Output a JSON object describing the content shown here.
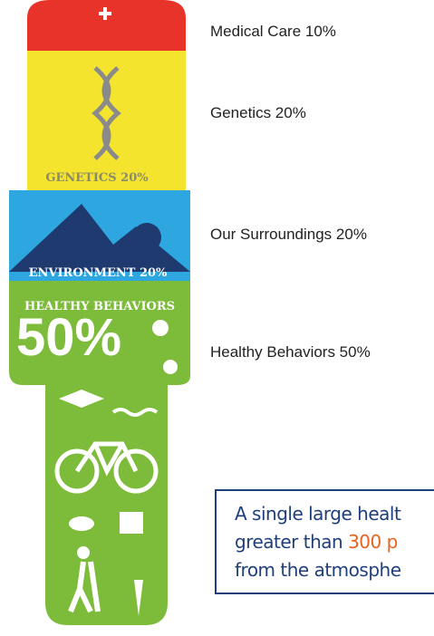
{
  "figure": {
    "genetics_label": "GENETICS 20%",
    "environment_label": "ENVIRONMENT 20%",
    "behaviors_label": "HEALTHY BEHAVIORS",
    "behaviors_big": "50%"
  },
  "legend": [
    "Medical Care 10%",
    "Genetics 20%",
    "Our Surroundings  20%",
    "Healthy Behaviors 50%"
  ],
  "callout": {
    "line1": "A single large healt",
    "line2_start": "greater than ",
    "line2_highlight": "300 p",
    "line3": "from the atmosphe"
  }
}
